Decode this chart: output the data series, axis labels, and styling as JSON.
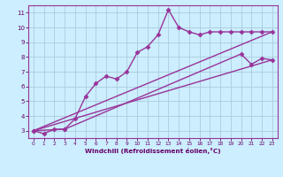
{
  "xlabel": "Windchill (Refroidissement éolien,°C)",
  "ylabel": "",
  "background_color": "#cceeff",
  "grid_color": "#aaccdd",
  "line_color": "#993399",
  "xlim": [
    -0.5,
    23.5
  ],
  "ylim": [
    2.5,
    11.5
  ],
  "xticks": [
    0,
    1,
    2,
    3,
    4,
    5,
    6,
    7,
    8,
    9,
    10,
    11,
    12,
    13,
    14,
    15,
    16,
    17,
    18,
    19,
    20,
    21,
    22,
    23
  ],
  "yticks": [
    3,
    4,
    5,
    6,
    7,
    8,
    9,
    10,
    11
  ],
  "series": [
    {
      "x": [
        0,
        1,
        2,
        3,
        4,
        5,
        6,
        7,
        8,
        9,
        10,
        11,
        12,
        13,
        14,
        15,
        16,
        17,
        18,
        19,
        20,
        21,
        22,
        23
      ],
      "y": [
        3.0,
        2.8,
        3.1,
        3.1,
        3.8,
        5.3,
        6.2,
        6.7,
        6.5,
        7.0,
        8.3,
        8.7,
        9.5,
        11.2,
        10.0,
        9.7,
        9.5,
        9.7,
        9.7,
        9.7,
        9.7,
        9.7,
        9.7,
        9.7
      ],
      "marker": "D",
      "markersize": 2.5,
      "linewidth": 1.0
    },
    {
      "x": [
        0,
        3,
        20,
        21,
        22,
        23
      ],
      "y": [
        3.0,
        3.1,
        8.2,
        7.5,
        7.9,
        7.8
      ],
      "marker": "D",
      "markersize": 2.5,
      "linewidth": 1.0,
      "connect_ends_only": false
    },
    {
      "x": [
        0,
        23
      ],
      "y": [
        3.0,
        7.8
      ],
      "marker": null,
      "markersize": 0,
      "linewidth": 1.0
    },
    {
      "x": [
        0,
        23
      ],
      "y": [
        3.0,
        9.7
      ],
      "marker": null,
      "markersize": 0,
      "linewidth": 1.0
    }
  ]
}
